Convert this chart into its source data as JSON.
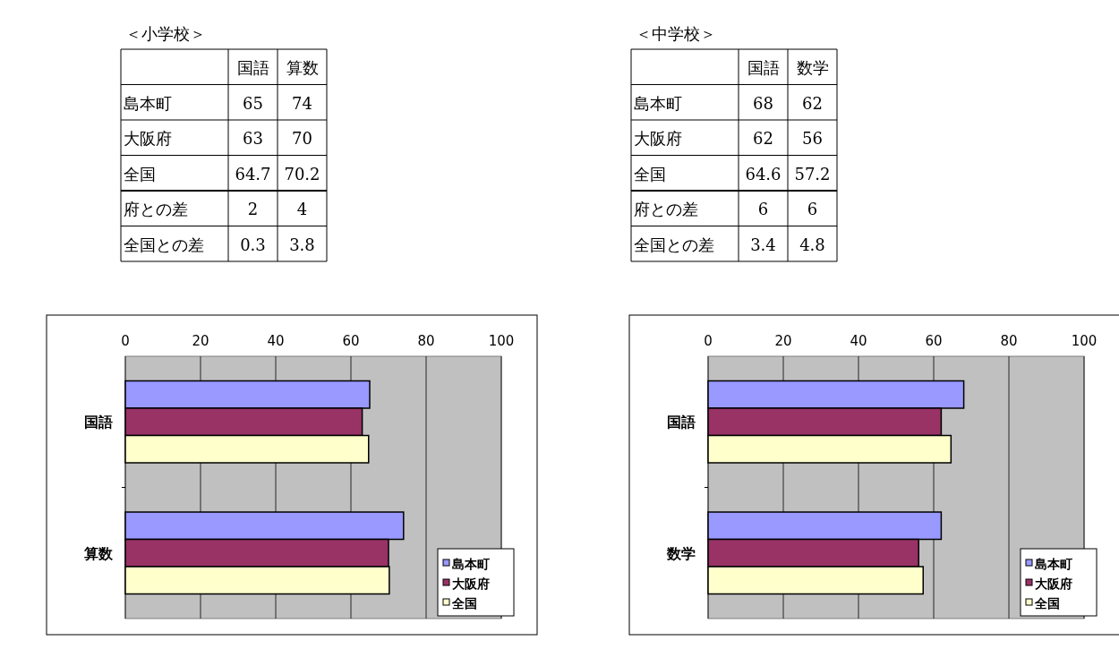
{
  "chart_data": [
    {
      "type": "other",
      "title": "＜小学校＞",
      "annotations": [
        "国語",
        "算数",
        "島本町",
        "65",
        "74",
        "大阪府",
        "63",
        "70",
        "全国",
        "64.7",
        "70.2",
        "府との差",
        "2",
        "4",
        "全国との差",
        "0.3",
        "3.8"
      ]
    },
    {
      "type": "other",
      "title": "＜中学校＞",
      "annotations": [
        "国語",
        "数学",
        "島本町",
        "68",
        "62",
        "大阪府",
        "62",
        "56",
        "全国",
        "64.6",
        "57.2",
        "府との差",
        "6",
        "6",
        "全国との差",
        "3.4",
        "4.8"
      ]
    },
    {
      "type": "bar",
      "orientation": "horizontal",
      "categories": [
        "国語",
        "算数"
      ],
      "series": [
        {
          "name": "島本町",
          "color": "#9999ff",
          "values": [
            65,
            74
          ]
        },
        {
          "name": "大阪府",
          "color": "#993366",
          "values": [
            63,
            70
          ]
        },
        {
          "name": "全国",
          "color": "#ffffcc",
          "values": [
            64.7,
            70.2
          ]
        }
      ],
      "xlim": [
        0,
        100
      ],
      "xticks": [
        0,
        20,
        40,
        60,
        80,
        100
      ],
      "grid": "x",
      "legend": "bottom right"
    },
    {
      "type": "bar",
      "orientation": "horizontal",
      "categories": [
        "国語",
        "数学"
      ],
      "series": [
        {
          "name": "島本町",
          "color": "#9999ff",
          "values": [
            68,
            62
          ]
        },
        {
          "name": "大阪府",
          "color": "#993366",
          "values": [
            62,
            56
          ]
        },
        {
          "name": "全国",
          "color": "#ffffcc",
          "values": [
            64.6,
            57.2
          ]
        }
      ],
      "xlim": [
        0,
        100
      ],
      "xticks": [
        0,
        20,
        40,
        60,
        80,
        100
      ],
      "grid": "x",
      "legend": "bottom right"
    }
  ]
}
